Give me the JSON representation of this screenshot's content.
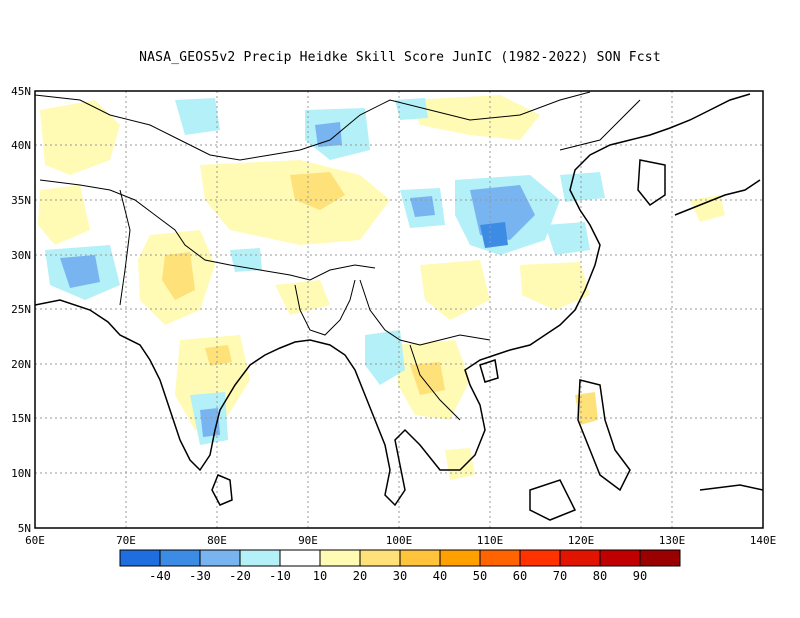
{
  "title": "NASA_GEOS5v2 Precip Heidke Skill Score JunIC (1982-2022) SON Fcst",
  "axes": {
    "lon_labels": [
      "60E",
      "70E",
      "80E",
      "90E",
      "100E",
      "110E",
      "120E",
      "130E",
      "140E"
    ],
    "lat_labels": [
      "45N",
      "40N",
      "35N",
      "30N",
      "25N",
      "20N",
      "15N",
      "10N",
      "5N"
    ],
    "lon_range": [
      60,
      140
    ],
    "lat_range": [
      5,
      45
    ],
    "grid": "dotted"
  },
  "colorbar": {
    "colors": [
      "#1e6ee0",
      "#3c8ce6",
      "#78b4f0",
      "#b4f0f8",
      "#ffffff",
      "#fffab4",
      "#ffe17a",
      "#ffc43c",
      "#ffa000",
      "#ff6400",
      "#ff3200",
      "#e11400",
      "#c00000",
      "#9b0000"
    ],
    "labels": [
      "-40",
      "-30",
      "-20",
      "-10",
      "10",
      "20",
      "30",
      "40",
      "50",
      "60",
      "70",
      "80",
      "90"
    ]
  },
  "chart_data": {
    "type": "heatmap",
    "title": "NASA_GEOS5v2 Precip Heidke Skill Score JunIC (1982-2022) SON Fcst",
    "xlabel": "",
    "ylabel": "",
    "xlim": [
      60,
      140
    ],
    "ylim": [
      5,
      45
    ],
    "note_regions": [
      {
        "lon": 106,
        "lat": 33,
        "value": -30
      },
      {
        "lon": 105,
        "lat": 34,
        "value": -25
      },
      {
        "lon": 89,
        "lat": 37,
        "value": -25
      },
      {
        "lon": 63,
        "lat": 29,
        "value": -25
      },
      {
        "lon": 81,
        "lat": 14,
        "value": -30
      },
      {
        "lon": 98,
        "lat": 33,
        "value": -20
      },
      {
        "lon": 86,
        "lat": 36,
        "value": 25
      },
      {
        "lon": 73,
        "lat": 29,
        "value": 25
      },
      {
        "lon": 105,
        "lat": 19,
        "value": 30
      },
      {
        "lon": 81,
        "lat": 21,
        "value": 20
      },
      {
        "lon": 120,
        "lat": 16,
        "value": 25
      }
    ]
  }
}
